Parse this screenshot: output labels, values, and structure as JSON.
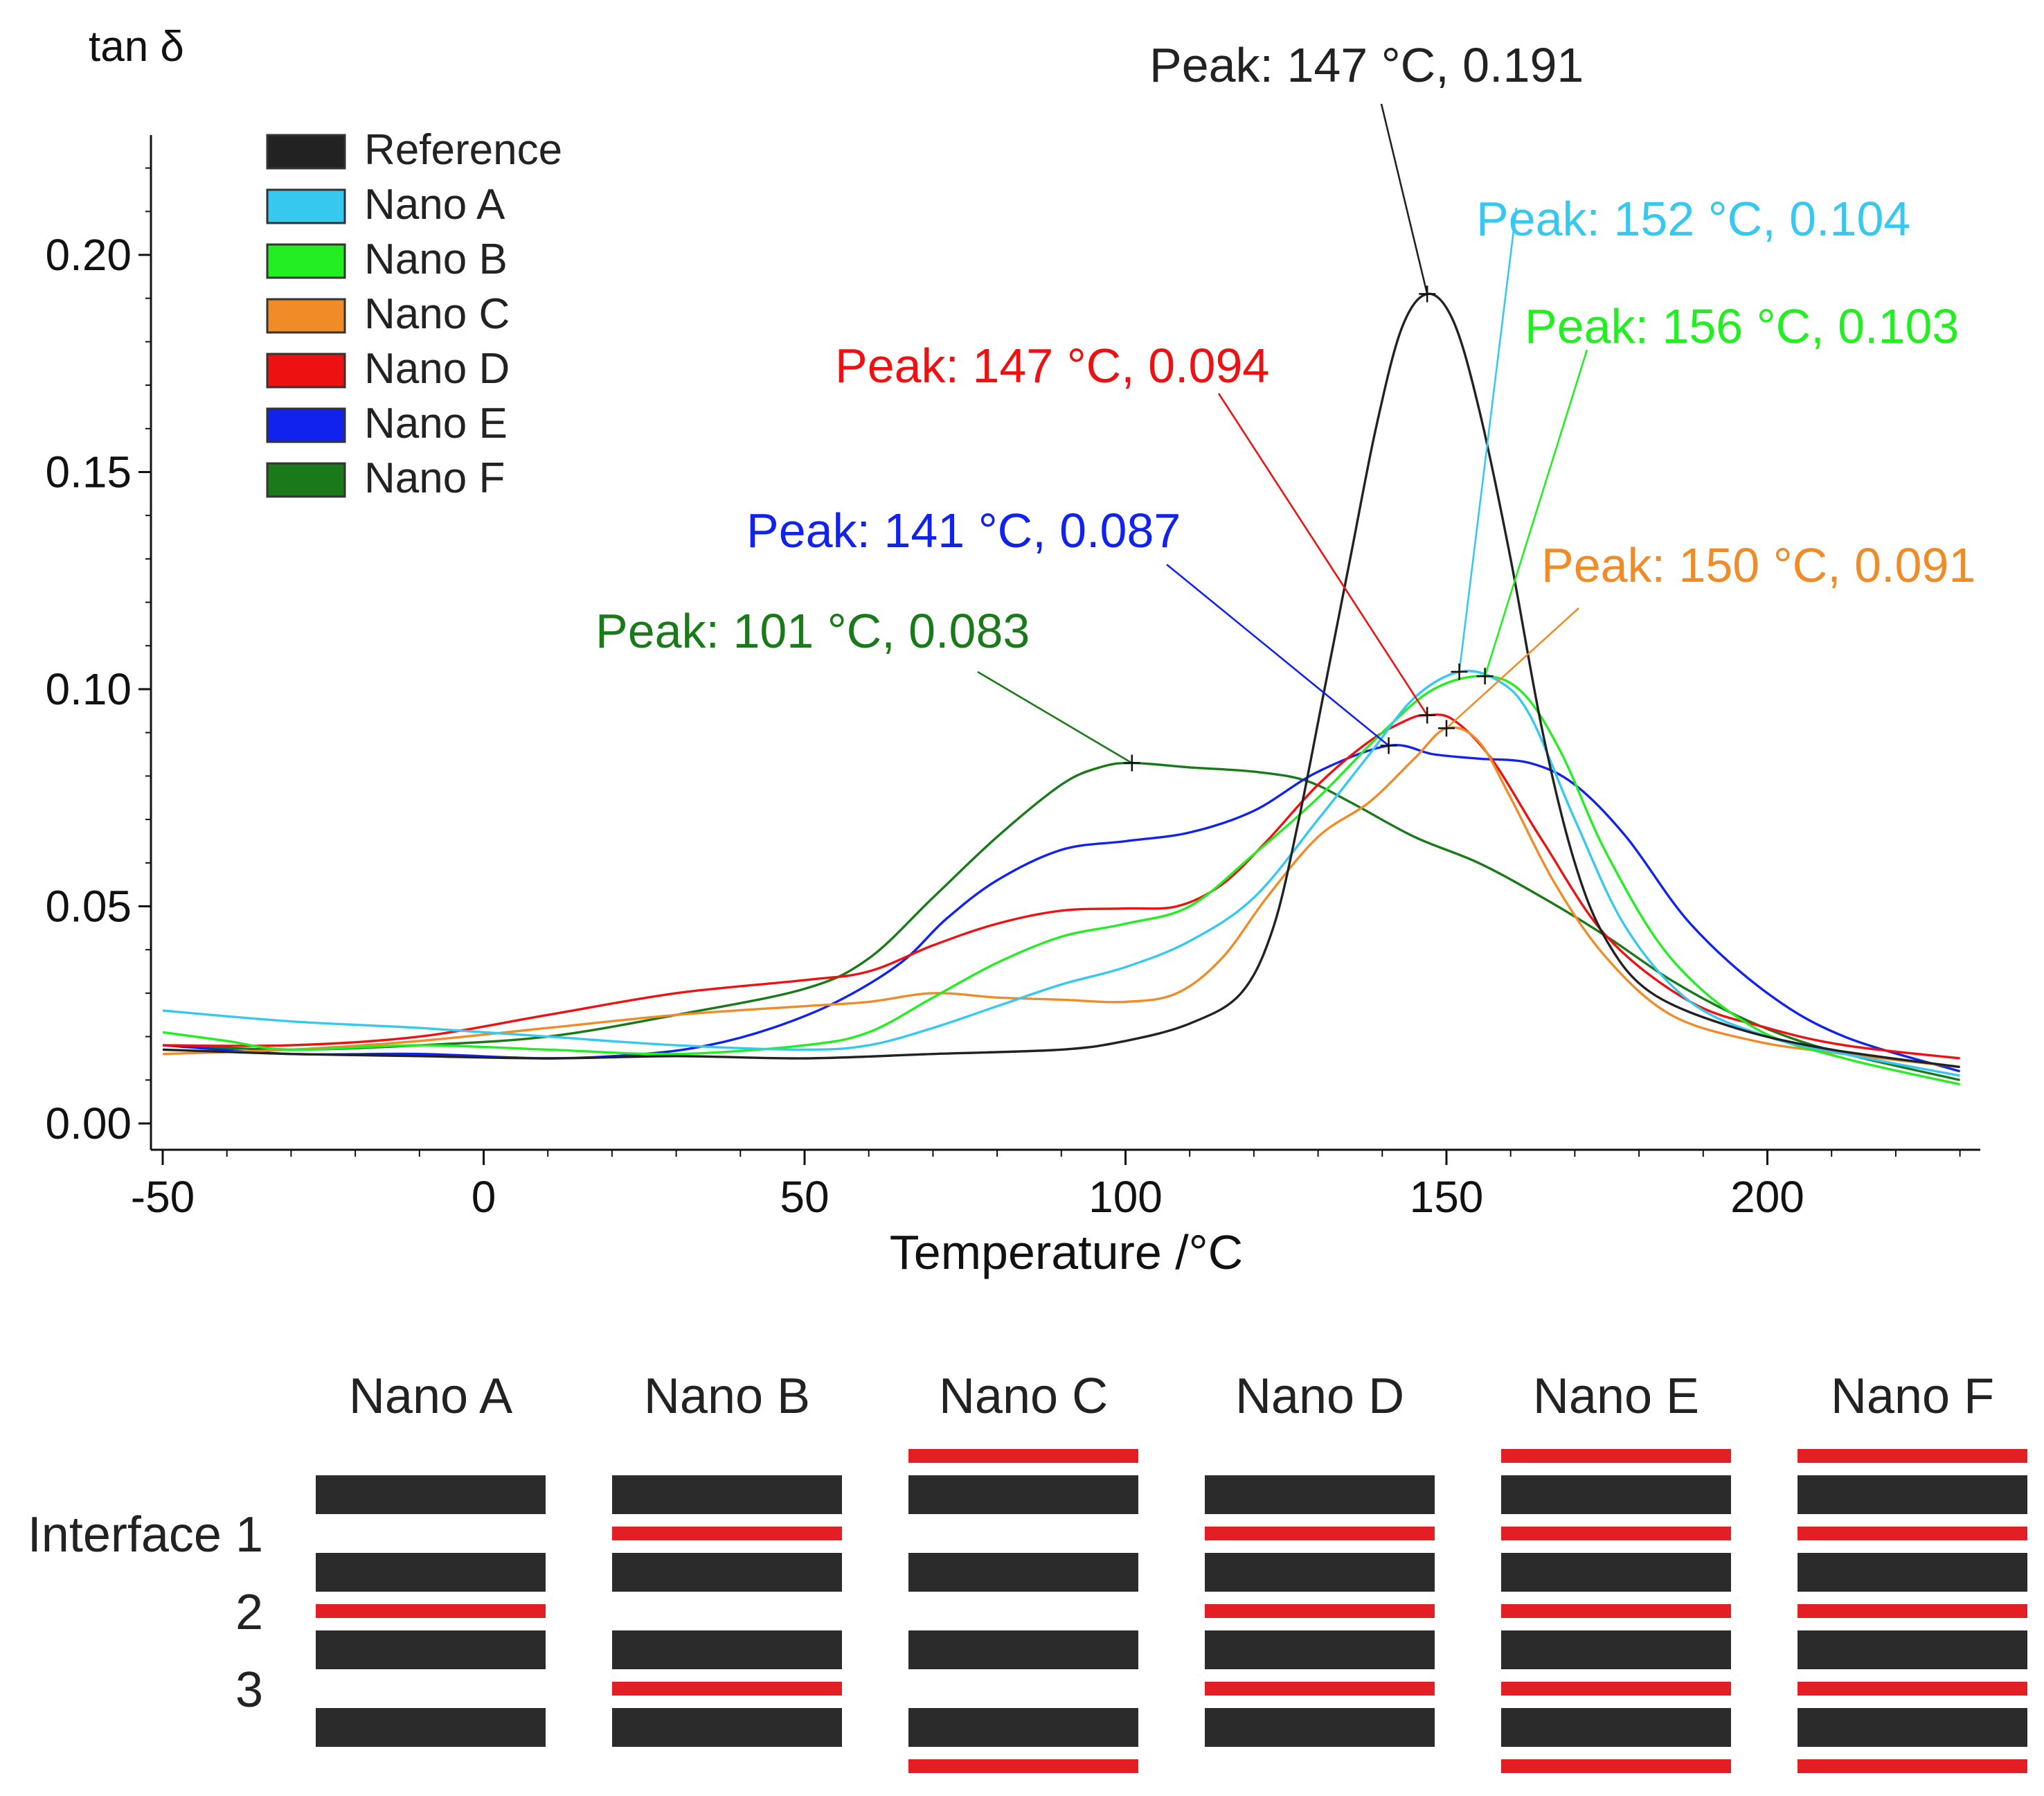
{
  "chart_data": {
    "type": "line",
    "ylabel": "tan δ",
    "xlabel": "Temperature /°C",
    "xlim": [
      -50,
      230
    ],
    "ylim": [
      0.0,
      0.225
    ],
    "x_ticks": [
      "-50",
      "0",
      "50",
      "100",
      "150",
      "200"
    ],
    "y_ticks": [
      "0.00",
      "0.05",
      "0.10",
      "0.15",
      "0.20"
    ],
    "legend_position": "top-left",
    "series": [
      {
        "name": "Reference",
        "color": "#222222",
        "points": [
          [
            -50,
            0.017
          ],
          [
            -30,
            0.016
          ],
          [
            -10,
            0.0155
          ],
          [
            10,
            0.015
          ],
          [
            30,
            0.0155
          ],
          [
            50,
            0.015
          ],
          [
            70,
            0.016
          ],
          [
            90,
            0.017
          ],
          [
            100,
            0.019
          ],
          [
            110,
            0.023
          ],
          [
            118,
            0.03
          ],
          [
            123,
            0.045
          ],
          [
            127,
            0.07
          ],
          [
            131,
            0.1
          ],
          [
            135,
            0.13
          ],
          [
            139,
            0.16
          ],
          [
            143,
            0.183
          ],
          [
            147,
            0.191
          ],
          [
            151,
            0.185
          ],
          [
            155,
            0.165
          ],
          [
            160,
            0.13
          ],
          [
            165,
            0.09
          ],
          [
            170,
            0.06
          ],
          [
            175,
            0.042
          ],
          [
            182,
            0.03
          ],
          [
            195,
            0.022
          ],
          [
            210,
            0.017
          ],
          [
            230,
            0.013
          ]
        ]
      },
      {
        "name": "Nano A",
        "color": "#37c8f0",
        "points": [
          [
            -50,
            0.026
          ],
          [
            -30,
            0.0235
          ],
          [
            -10,
            0.022
          ],
          [
            10,
            0.02
          ],
          [
            30,
            0.018
          ],
          [
            50,
            0.017
          ],
          [
            60,
            0.018
          ],
          [
            70,
            0.022
          ],
          [
            80,
            0.027
          ],
          [
            90,
            0.032
          ],
          [
            100,
            0.036
          ],
          [
            110,
            0.042
          ],
          [
            120,
            0.052
          ],
          [
            130,
            0.07
          ],
          [
            138,
            0.085
          ],
          [
            145,
            0.098
          ],
          [
            152,
            0.104
          ],
          [
            158,
            0.102
          ],
          [
            163,
            0.094
          ],
          [
            170,
            0.07
          ],
          [
            178,
            0.045
          ],
          [
            188,
            0.028
          ],
          [
            200,
            0.02
          ],
          [
            212,
            0.016
          ],
          [
            230,
            0.011
          ]
        ]
      },
      {
        "name": "Nano B",
        "color": "#22ee22",
        "points": [
          [
            -50,
            0.021
          ],
          [
            -40,
            0.019
          ],
          [
            -30,
            0.017
          ],
          [
            -10,
            0.018
          ],
          [
            10,
            0.017
          ],
          [
            30,
            0.016
          ],
          [
            50,
            0.018
          ],
          [
            60,
            0.021
          ],
          [
            70,
            0.029
          ],
          [
            80,
            0.037
          ],
          [
            90,
            0.043
          ],
          [
            100,
            0.046
          ],
          [
            110,
            0.05
          ],
          [
            120,
            0.062
          ],
          [
            130,
            0.075
          ],
          [
            140,
            0.09
          ],
          [
            148,
            0.1
          ],
          [
            156,
            0.103
          ],
          [
            162,
            0.099
          ],
          [
            168,
            0.085
          ],
          [
            175,
            0.062
          ],
          [
            185,
            0.038
          ],
          [
            198,
            0.022
          ],
          [
            212,
            0.015
          ],
          [
            230,
            0.009
          ]
        ]
      },
      {
        "name": "Nano C",
        "color": "#f08c28",
        "points": [
          [
            -50,
            0.016
          ],
          [
            -30,
            0.017
          ],
          [
            -10,
            0.019
          ],
          [
            10,
            0.022
          ],
          [
            30,
            0.025
          ],
          [
            50,
            0.027
          ],
          [
            60,
            0.028
          ],
          [
            70,
            0.03
          ],
          [
            80,
            0.029
          ],
          [
            90,
            0.0285
          ],
          [
            100,
            0.028
          ],
          [
            108,
            0.03
          ],
          [
            115,
            0.038
          ],
          [
            122,
            0.052
          ],
          [
            130,
            0.066
          ],
          [
            138,
            0.074
          ],
          [
            145,
            0.084
          ],
          [
            150,
            0.091
          ],
          [
            155,
            0.088
          ],
          [
            160,
            0.075
          ],
          [
            167,
            0.055
          ],
          [
            175,
            0.038
          ],
          [
            185,
            0.025
          ],
          [
            198,
            0.019
          ],
          [
            212,
            0.016
          ],
          [
            230,
            0.013
          ]
        ]
      },
      {
        "name": "Nano D",
        "color": "#ee1111",
        "points": [
          [
            -50,
            0.018
          ],
          [
            -30,
            0.018
          ],
          [
            -10,
            0.02
          ],
          [
            10,
            0.025
          ],
          [
            30,
            0.03
          ],
          [
            50,
            0.033
          ],
          [
            60,
            0.035
          ],
          [
            70,
            0.041
          ],
          [
            80,
            0.046
          ],
          [
            90,
            0.049
          ],
          [
            100,
            0.0495
          ],
          [
            108,
            0.05
          ],
          [
            115,
            0.055
          ],
          [
            122,
            0.065
          ],
          [
            130,
            0.078
          ],
          [
            138,
            0.088
          ],
          [
            144,
            0.093
          ],
          [
            147,
            0.094
          ],
          [
            151,
            0.093
          ],
          [
            157,
            0.084
          ],
          [
            165,
            0.065
          ],
          [
            175,
            0.043
          ],
          [
            188,
            0.028
          ],
          [
            200,
            0.022
          ],
          [
            212,
            0.018
          ],
          [
            230,
            0.015
          ]
        ]
      },
      {
        "name": "Nano E",
        "color": "#1122ee",
        "points": [
          [
            -50,
            0.018
          ],
          [
            -30,
            0.016
          ],
          [
            -10,
            0.016
          ],
          [
            10,
            0.015
          ],
          [
            25,
            0.016
          ],
          [
            35,
            0.018
          ],
          [
            45,
            0.022
          ],
          [
            55,
            0.028
          ],
          [
            65,
            0.037
          ],
          [
            72,
            0.047
          ],
          [
            80,
            0.056
          ],
          [
            90,
            0.063
          ],
          [
            100,
            0.065
          ],
          [
            110,
            0.067
          ],
          [
            120,
            0.072
          ],
          [
            130,
            0.081
          ],
          [
            141,
            0.087
          ],
          [
            148,
            0.085
          ],
          [
            155,
            0.084
          ],
          [
            163,
            0.083
          ],
          [
            170,
            0.078
          ],
          [
            178,
            0.066
          ],
          [
            188,
            0.046
          ],
          [
            200,
            0.03
          ],
          [
            212,
            0.02
          ],
          [
            230,
            0.012
          ]
        ]
      },
      {
        "name": "Nano F",
        "color": "#1a7a1a",
        "points": [
          [
            -50,
            0.018
          ],
          [
            -30,
            0.017
          ],
          [
            -10,
            0.018
          ],
          [
            10,
            0.02
          ],
          [
            30,
            0.025
          ],
          [
            50,
            0.031
          ],
          [
            60,
            0.038
          ],
          [
            70,
            0.052
          ],
          [
            80,
            0.066
          ],
          [
            90,
            0.078
          ],
          [
            96,
            0.082
          ],
          [
            101,
            0.083
          ],
          [
            110,
            0.082
          ],
          [
            120,
            0.081
          ],
          [
            128,
            0.079
          ],
          [
            135,
            0.074
          ],
          [
            145,
            0.066
          ],
          [
            155,
            0.06
          ],
          [
            165,
            0.052
          ],
          [
            175,
            0.043
          ],
          [
            185,
            0.033
          ],
          [
            195,
            0.025
          ],
          [
            205,
            0.019
          ],
          [
            215,
            0.015
          ],
          [
            230,
            0.01
          ]
        ]
      }
    ],
    "peak_annotations": [
      {
        "series": "Reference",
        "text": "Peak: 147 °C, 0.191",
        "x": 147,
        "y": 0.191
      },
      {
        "series": "Nano A",
        "text": "Peak: 152 °C, 0.104",
        "x": 152,
        "y": 0.104
      },
      {
        "series": "Nano B",
        "text": "Peak: 156 °C, 0.103",
        "x": 156,
        "y": 0.103
      },
      {
        "series": "Nano D",
        "text": "Peak: 147 °C, 0.094",
        "x": 147,
        "y": 0.094
      },
      {
        "series": "Nano E",
        "text": "Peak: 141 °C, 0.087",
        "x": 141,
        "y": 0.087
      },
      {
        "series": "Nano C",
        "text": "Peak: 150 °C, 0.091",
        "x": 150,
        "y": 0.091
      },
      {
        "series": "Nano F",
        "text": "Peak: 101 °C, 0.083",
        "x": 101,
        "y": 0.083
      }
    ]
  },
  "schematic": {
    "row_labels": [
      "Interface 1",
      "2",
      "3"
    ],
    "layer_color": "#2b2b2b",
    "interface_color": "#e31e24",
    "samples": [
      {
        "name": "Nano A",
        "top": false,
        "i1": false,
        "i2": true,
        "i3": false,
        "bottom": false
      },
      {
        "name": "Nano B",
        "top": false,
        "i1": true,
        "i2": false,
        "i3": true,
        "bottom": false
      },
      {
        "name": "Nano C",
        "top": true,
        "i1": false,
        "i2": false,
        "i3": false,
        "bottom": true
      },
      {
        "name": "Nano D",
        "top": false,
        "i1": true,
        "i2": true,
        "i3": true,
        "bottom": false
      },
      {
        "name": "Nano E",
        "top": true,
        "i1": true,
        "i2": true,
        "i3": true,
        "bottom": true
      },
      {
        "name": "Nano F",
        "top": true,
        "i1": true,
        "i2": true,
        "i3": true,
        "bottom": true
      }
    ]
  }
}
